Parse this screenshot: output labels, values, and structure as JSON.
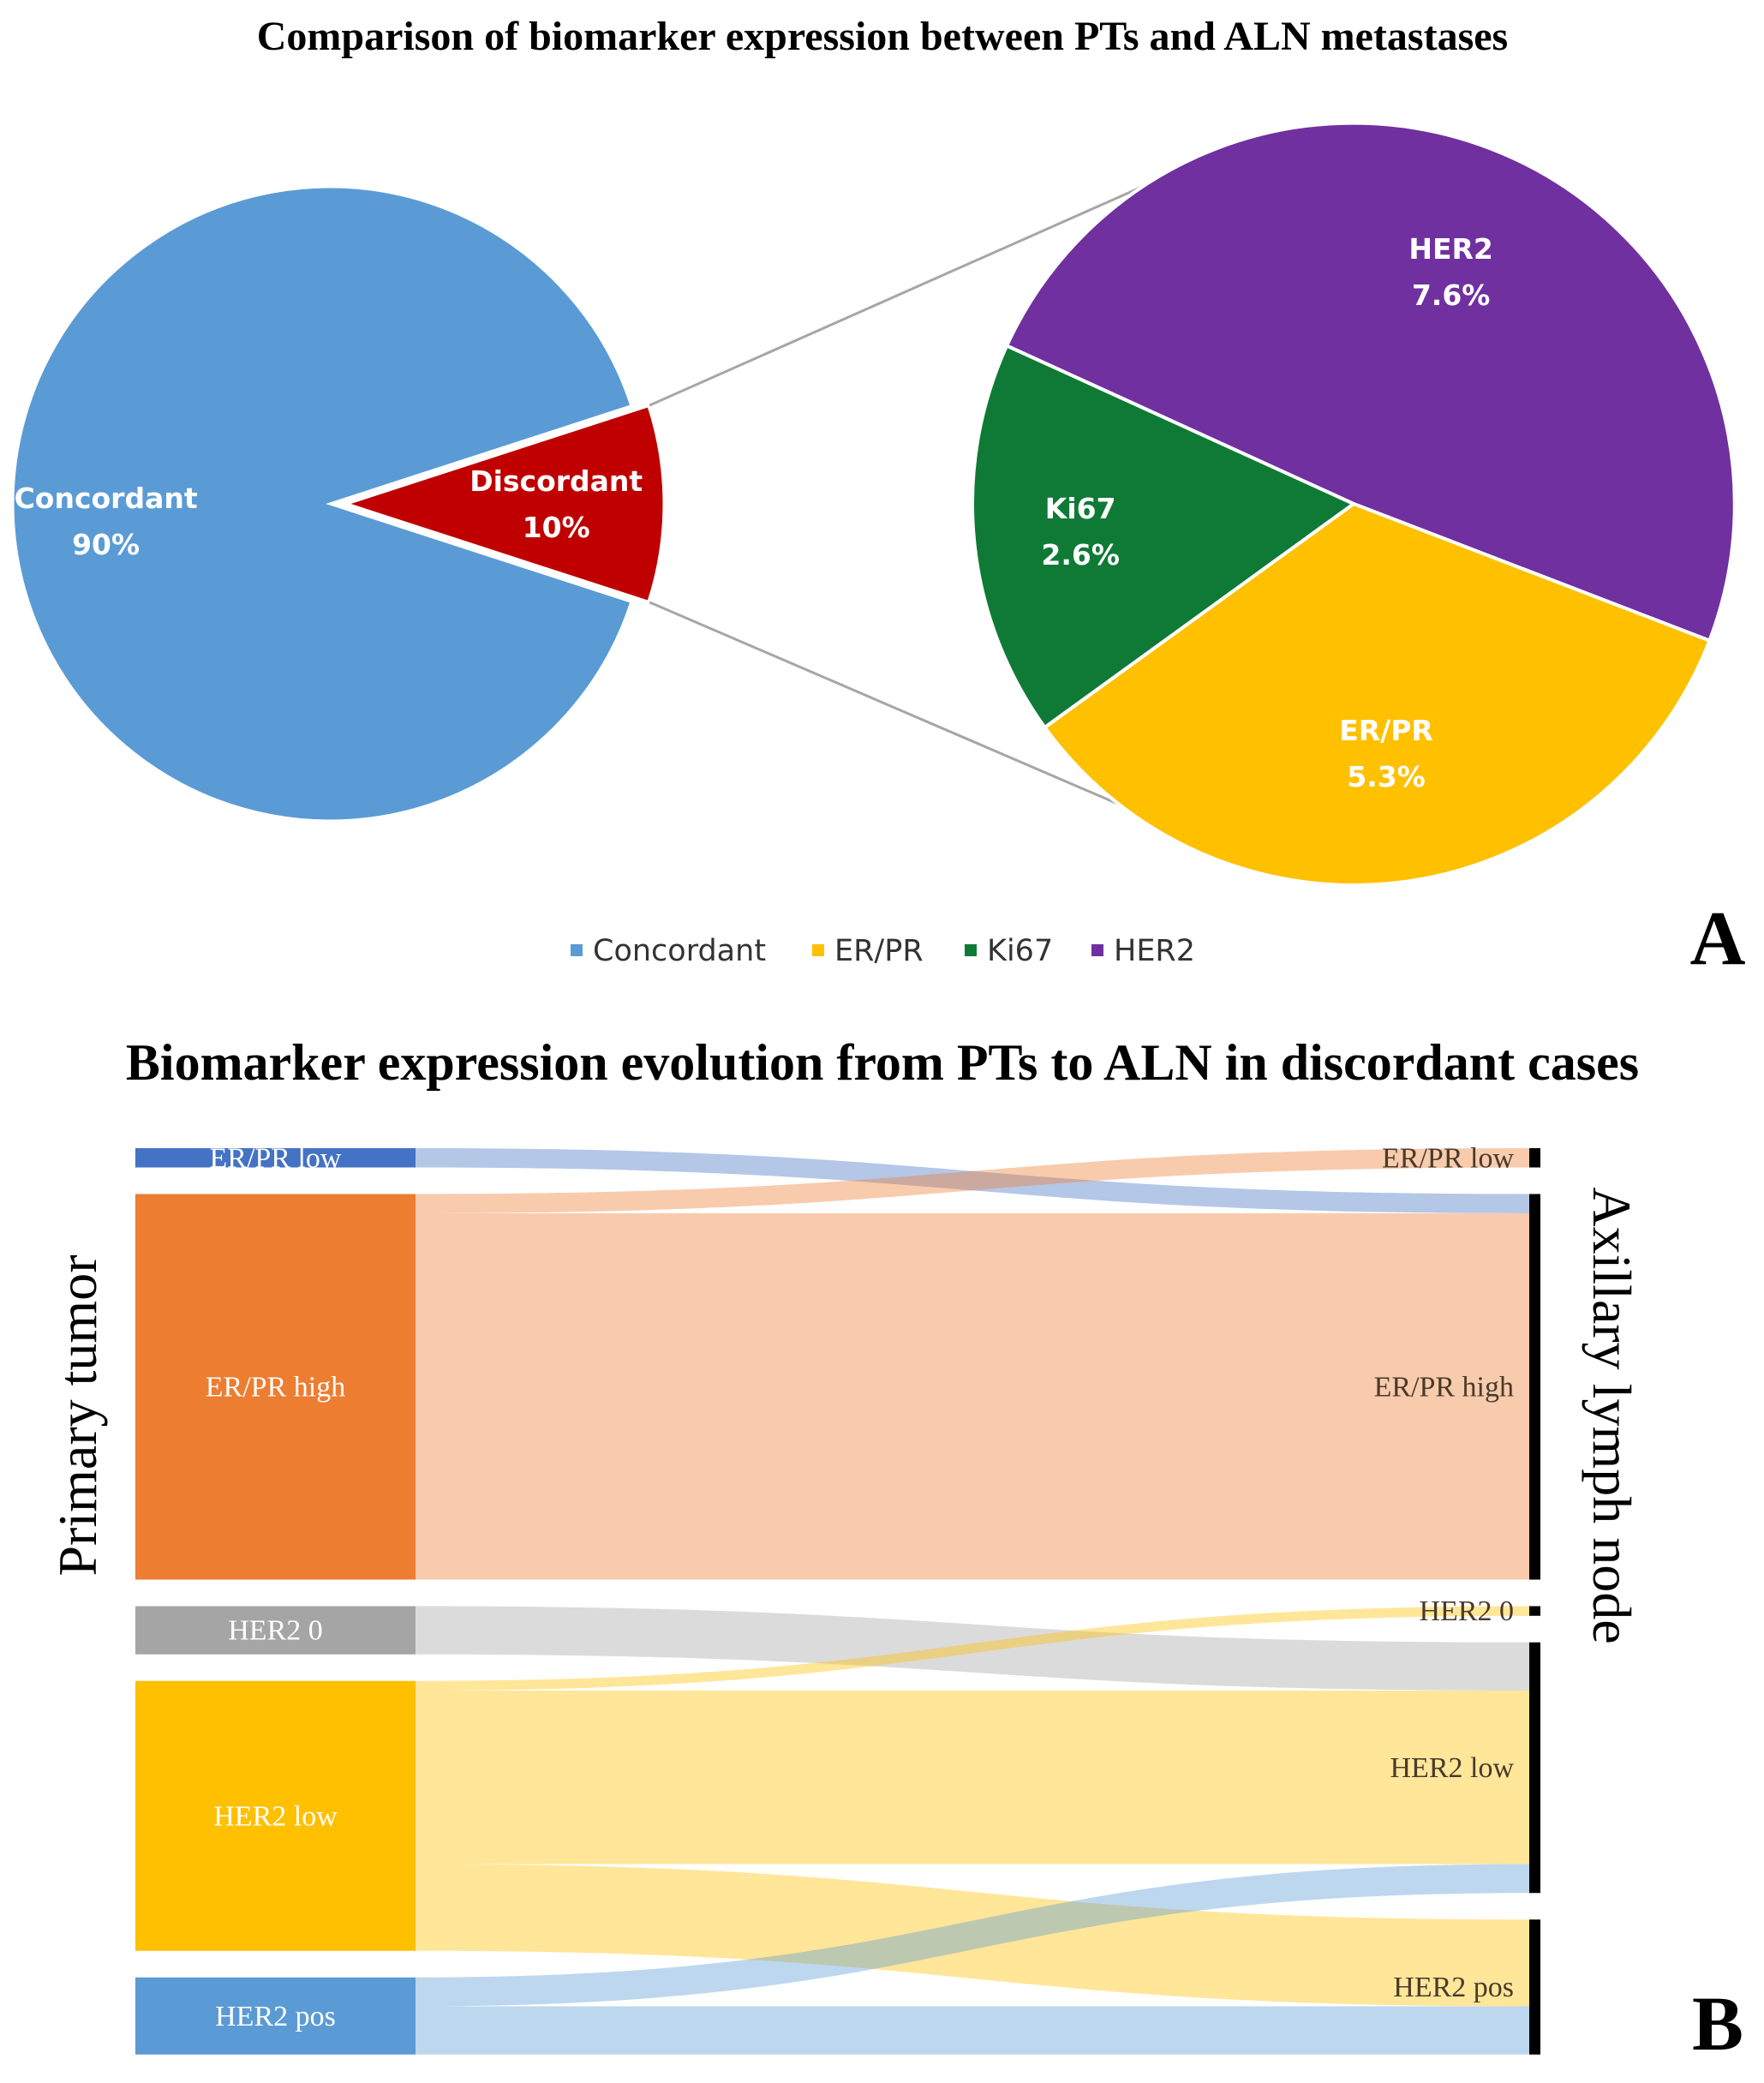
{
  "colors": {
    "concordant": "#5b9bd5",
    "discordant": "#c00000",
    "er_pr": "#ffc000",
    "ki67": "#0f7a35",
    "her2": "#7030a0",
    "er_pr_low": "#4472c4",
    "er_pr_high": "#ed7d31",
    "her2_0": "#a5a5a5",
    "her2_low": "#ffc000",
    "her2_pos": "#5b9bd5",
    "connector": "#a6a6a6"
  },
  "panel_a": {
    "letter": "A",
    "main_pie": {
      "slices": [
        {
          "key": "concordant",
          "label": "Concordant",
          "value_label": "90%"
        },
        {
          "key": "discordant",
          "label": "Discordant",
          "value_label": "10%"
        }
      ]
    },
    "breakdown_pie": {
      "slices": [
        {
          "key": "her2",
          "label": "HER2",
          "value_label": "7.6%"
        },
        {
          "key": "er_pr",
          "label": "ER/PR",
          "value_label": "5.3%"
        },
        {
          "key": "ki67",
          "label": "Ki67",
          "value_label": "2.6%"
        }
      ]
    },
    "legend": [
      {
        "key": "concordant",
        "label": "Concordant"
      },
      {
        "key": "er_pr",
        "label": "ER/PR"
      },
      {
        "key": "ki67",
        "label": "Ki67"
      },
      {
        "key": "her2",
        "label": "HER2"
      }
    ]
  },
  "panel_b": {
    "letter": "B",
    "left_axis_title": "Primary tumor",
    "right_axis_title": "Axillary lymph node",
    "sources": [
      {
        "key": "er_pr_low",
        "label": "ER/PR low"
      },
      {
        "key": "er_pr_high",
        "label": "ER/PR high"
      },
      {
        "key": "her2_0",
        "label": "HER2 0"
      },
      {
        "key": "her2_low",
        "label": "HER2 low"
      },
      {
        "key": "her2_pos",
        "label": "HER2 pos"
      }
    ],
    "targets": [
      {
        "key": "er_pr_low",
        "label": "ER/PR low"
      },
      {
        "key": "er_pr_high",
        "label": "ER/PR high"
      },
      {
        "key": "her2_0",
        "label": "HER2 0"
      },
      {
        "key": "her2_low",
        "label": "HER2 low"
      },
      {
        "key": "her2_pos",
        "label": "HER2 pos"
      }
    ]
  },
  "chart_data": [
    {
      "type": "pie",
      "title": "Comparison of biomarker expression between PTs and ALN metastases",
      "main_pie": {
        "categories": [
          "Concordant",
          "Discordant"
        ],
        "values": [
          90,
          10
        ],
        "unit": "%"
      },
      "breakdown_of": "Discordant",
      "breakdown_pie": {
        "categories": [
          "HER2",
          "ER/PR",
          "Ki67"
        ],
        "values": [
          7.6,
          5.3,
          2.6
        ],
        "unit": "%"
      },
      "legend": [
        "Concordant",
        "ER/PR",
        "Ki67",
        "HER2"
      ],
      "legend_position": "bottom"
    },
    {
      "type": "sankey",
      "title": "Biomarker expression evolution from PTs to ALN in discordant cases",
      "xlabel_left": "Primary tumor",
      "xlabel_right": "Axillary lymph node",
      "values_estimated": true,
      "flows": [
        {
          "from": "ER/PR low",
          "to": "ER/PR high",
          "value": 1
        },
        {
          "from": "ER/PR high",
          "to": "ER/PR low",
          "value": 1
        },
        {
          "from": "ER/PR high",
          "to": "ER/PR high",
          "value": 19
        },
        {
          "from": "HER2 0",
          "to": "HER2 low",
          "value": 2.5
        },
        {
          "from": "HER2 low",
          "to": "HER2 0",
          "value": 0.5
        },
        {
          "from": "HER2 low",
          "to": "HER2 low",
          "value": 9
        },
        {
          "from": "HER2 low",
          "to": "HER2 pos",
          "value": 4.5
        },
        {
          "from": "HER2 pos",
          "to": "HER2 low",
          "value": 1.5
        },
        {
          "from": "HER2 pos",
          "to": "HER2 pos",
          "value": 2.5
        }
      ]
    }
  ]
}
